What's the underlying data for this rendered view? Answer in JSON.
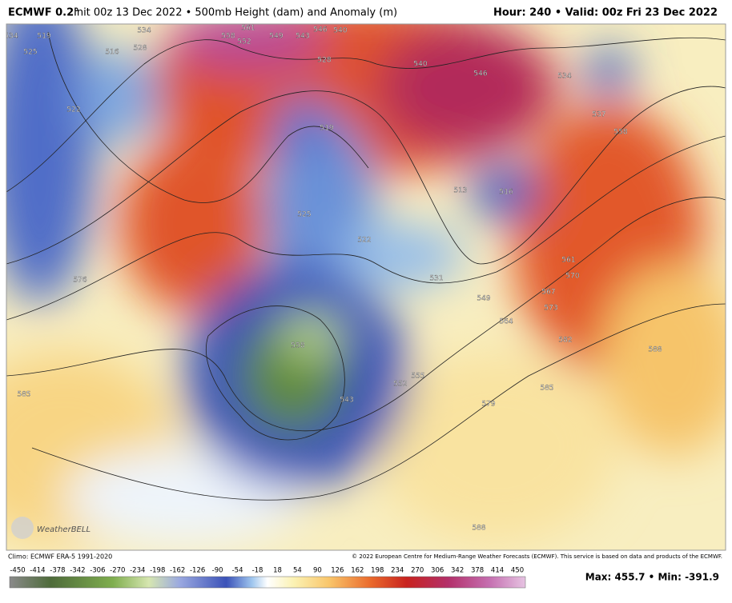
{
  "header": {
    "model": "ECMWF 0.2°",
    "run": "Init 00z 13 Dec 2022 • 500mb Height (dam) and Anomaly (m)",
    "valid": "Hour: 240 • Valid: 00z Fri 23 Dec 2022"
  },
  "map": {
    "logo": "WeatherBELL",
    "contour_labels": [
      534,
      519,
      525,
      516,
      528,
      534,
      561,
      558,
      552,
      549,
      543,
      546,
      540,
      528,
      540,
      546,
      534,
      537,
      558,
      522,
      519,
      525,
      522,
      513,
      516,
      531,
      576,
      549,
      561,
      570,
      567,
      564,
      573,
      582,
      588,
      558,
      552,
      555,
      543,
      579,
      585,
      585,
      588
    ]
  },
  "footer": {
    "climo": "Climo: ECMWF ERA-5 1991-2020",
    "copyright": "© 2022 European Centre for Medium-Range Weather Forecasts (ECMWF). This service is based on data and products of the ECMWF.",
    "colorbar_ticks": [
      -450,
      -414,
      -378,
      -342,
      -306,
      -270,
      -234,
      -198,
      -162,
      -126,
      -90,
      -54,
      -18,
      18,
      54,
      90,
      126,
      162,
      198,
      234,
      270,
      306,
      342,
      378,
      414,
      450
    ],
    "stats": "Max: 455.7 • Min: -391.9"
  }
}
